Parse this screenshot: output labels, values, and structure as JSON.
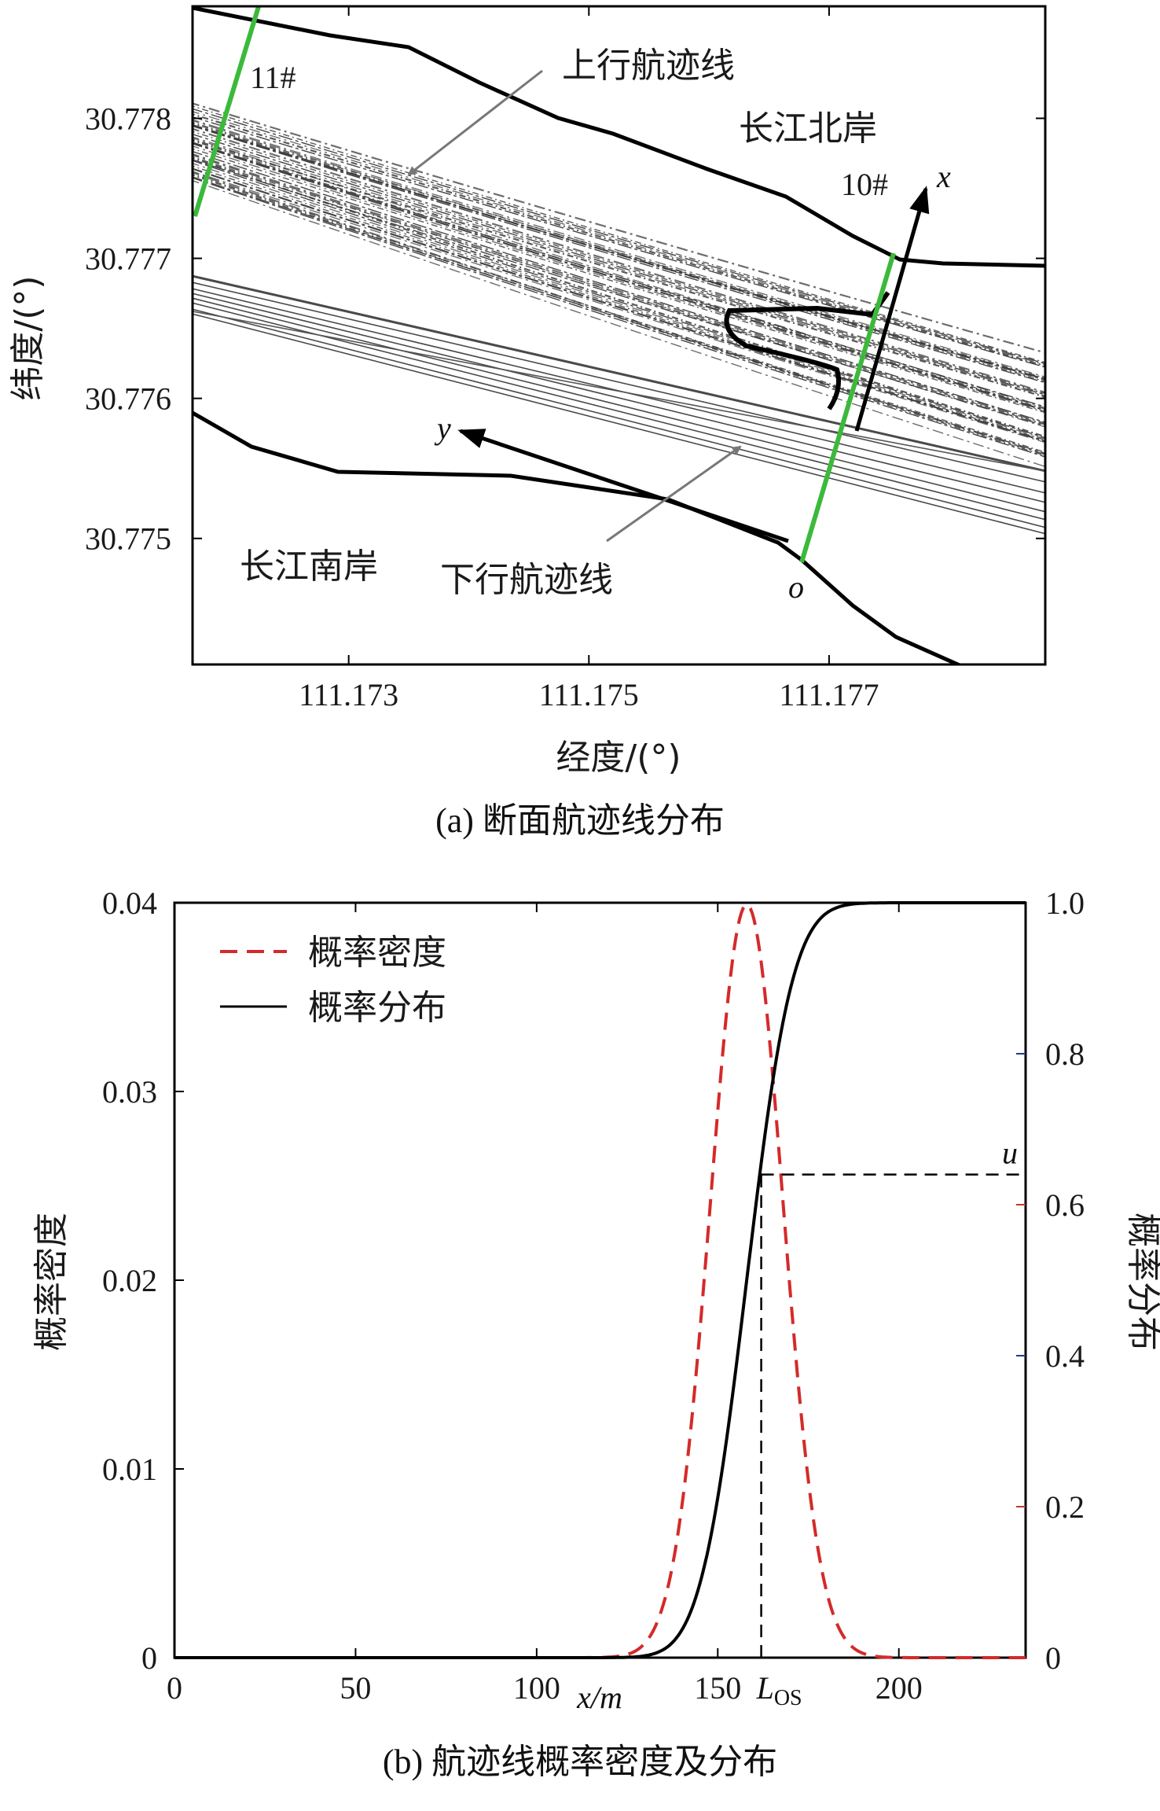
{
  "chart_data": [
    {
      "type": "line",
      "panel": "a",
      "caption": "(a) 断面航迹线分布",
      "xlabel": "经度/(°)",
      "ylabel": "纬度/(°)",
      "x_ticks": [
        "111.173",
        "111.175",
        "111.177"
      ],
      "y_ticks": [
        "30.778",
        "30.777",
        "30.776",
        "30.775"
      ],
      "xlim": [
        111.1717,
        111.1788
      ],
      "ylim": [
        30.7741,
        30.7788
      ],
      "annotations": {
        "section_11": "11#",
        "section_10": "10#",
        "upstream_tracks": "上行航迹线",
        "downstream_tracks": "下行航迹线",
        "north_bank": "长江北岸",
        "south_bank": "长江南岸",
        "axis_x": "x",
        "axis_y": "y",
        "origin": "o"
      },
      "colors": {
        "section_line": "#3cb93c",
        "bank": "#000000",
        "tracks": "#333333"
      }
    },
    {
      "type": "line",
      "panel": "b",
      "caption": "(b) 航迹线概率密度及分布",
      "xlabel": "x/m",
      "ylabel_left": "概率密度",
      "ylabel_right": "概率分布",
      "xlim": [
        0,
        235
      ],
      "ylim_left": [
        0,
        0.04
      ],
      "ylim_right": [
        0,
        1.0
      ],
      "x_ticks": [
        "0",
        "50",
        "100",
        "150",
        "200"
      ],
      "y_left_ticks": [
        "0",
        "0.01",
        "0.02",
        "0.03",
        "0.04"
      ],
      "y_right_ticks": [
        "0",
        "0.2",
        "0.4",
        "0.6",
        "0.8",
        "1.0"
      ],
      "legend": {
        "placement": "top-left",
        "entries": [
          "概率密度",
          "概率分布"
        ]
      },
      "series": [
        {
          "name": "概率密度",
          "axis": "left",
          "style": "dashed",
          "color": "#d42a2a",
          "distribution": "normal",
          "mean": 158,
          "sd": 10
        },
        {
          "name": "概率分布",
          "axis": "right",
          "style": "solid",
          "color": "#000000",
          "distribution": "normal-cdf",
          "mean": 158,
          "sd": 10
        }
      ],
      "marker": {
        "x": 162,
        "u": 0.64,
        "x_label": "L",
        "x_label_sub": "OS",
        "u_label": "u"
      }
    }
  ]
}
